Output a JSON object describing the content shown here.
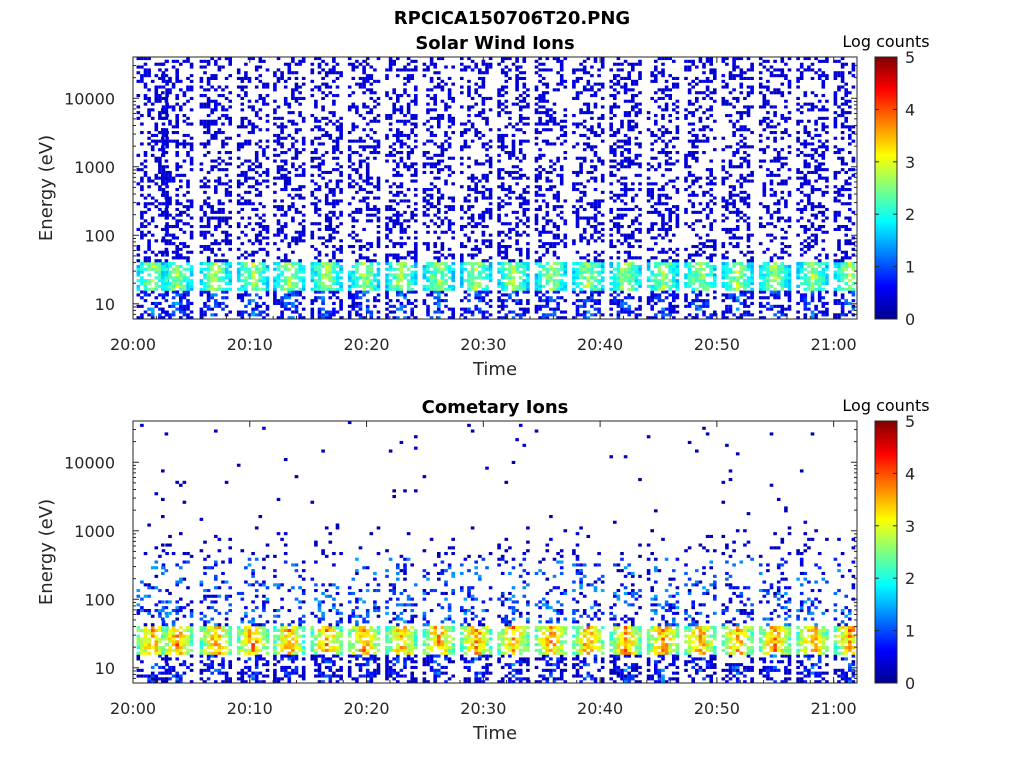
{
  "figure": {
    "title": "RPCICA150706T20.PNG"
  },
  "chart_data": [
    {
      "type": "heatmap",
      "title": "Solar Wind Ions",
      "xlabel": "Time",
      "ylabel": "Energy (eV)",
      "x_ticks": [
        "20:00",
        "20:10",
        "20:20",
        "20:30",
        "20:40",
        "20:50",
        "21:00"
      ],
      "x_range": [
        "20:00",
        "21:02"
      ],
      "y_scale": "log",
      "y_ticks": [
        10,
        100,
        1000,
        10000
      ],
      "y_range": [
        6,
        40000
      ],
      "colorbar": {
        "label": "Log counts",
        "ticks": [
          0,
          1,
          2,
          3,
          4,
          5
        ],
        "range": [
          0,
          5
        ],
        "colormap": "jet"
      },
      "colorbar_label": "Log counts",
      "sweep_start_minutes": [
        0.3,
        2.4,
        5.7,
        8.9,
        12.0,
        15.2,
        18.4,
        21.6,
        24.8,
        28.0,
        31.2,
        34.4,
        37.6,
        40.8,
        44.0,
        47.2,
        50.4,
        53.6,
        56.8,
        60.0
      ],
      "low_energy_band_eV": [
        15,
        40
      ],
      "low_energy_peak_log_counts": 2.8,
      "high_energy_scatter_log_counts": 0.3
    },
    {
      "type": "heatmap",
      "title": "Cometary Ions",
      "xlabel": "Time",
      "ylabel": "Energy (eV)",
      "x_ticks": [
        "20:00",
        "20:10",
        "20:20",
        "20:30",
        "20:40",
        "20:50",
        "21:00"
      ],
      "x_range": [
        "20:00",
        "21:02"
      ],
      "y_scale": "log",
      "y_ticks": [
        10,
        100,
        1000,
        10000
      ],
      "y_range": [
        6,
        40000
      ],
      "colorbar": {
        "label": "Log counts",
        "ticks": [
          0,
          1,
          2,
          3,
          4,
          5
        ],
        "range": [
          0,
          5
        ],
        "colormap": "jet"
      },
      "colorbar_label": "Log counts",
      "sweep_start_minutes": [
        0.3,
        2.4,
        5.7,
        8.9,
        12.0,
        15.2,
        18.4,
        21.6,
        24.8,
        28.0,
        31.2,
        34.4,
        37.6,
        40.8,
        44.0,
        47.2,
        50.4,
        53.6,
        56.8,
        60.0
      ],
      "low_energy_band_eV": [
        15,
        40
      ],
      "low_energy_peak_log_counts": 3.8,
      "high_energy_scatter_log_counts": 0.2
    }
  ]
}
